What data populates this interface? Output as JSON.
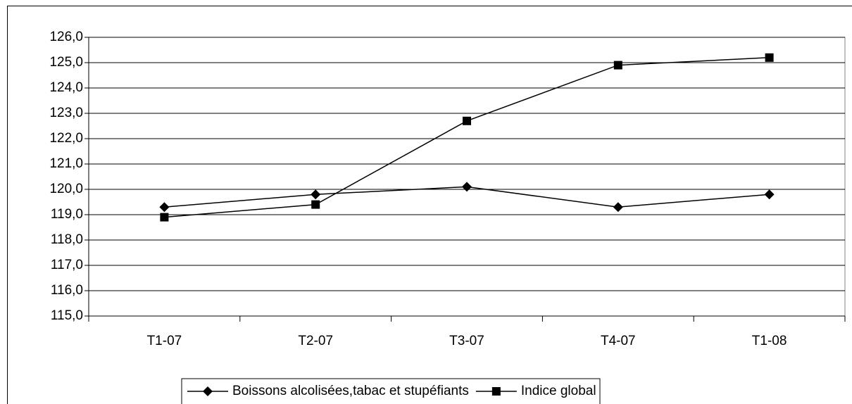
{
  "chart_data": {
    "type": "line",
    "categories": [
      "T1-07",
      "T2-07",
      "T3-07",
      "T4-07",
      "T1-08"
    ],
    "series": [
      {
        "name": "Boissons alcolisées,tabac et stupéfiants",
        "color": "#000000",
        "marker": "diamond",
        "values": [
          119.3,
          119.8,
          120.1,
          119.3,
          119.8
        ]
      },
      {
        "name": "Indice global",
        "color": "#000000",
        "marker": "square",
        "values": [
          118.9,
          119.4,
          122.7,
          124.9,
          125.2
        ]
      }
    ],
    "ylim": [
      115,
      126
    ],
    "yticks": [
      {
        "value": 115,
        "label": "115,0"
      },
      {
        "value": 116,
        "label": "116,0"
      },
      {
        "value": 117,
        "label": "117,0"
      },
      {
        "value": 118,
        "label": "118,0"
      },
      {
        "value": 119,
        "label": "119,0"
      },
      {
        "value": 120,
        "label": "120,0"
      },
      {
        "value": 121,
        "label": "121,0"
      },
      {
        "value": 122,
        "label": "122,0"
      },
      {
        "value": 123,
        "label": "123,0"
      },
      {
        "value": 124,
        "label": "124,0"
      },
      {
        "value": 125,
        "label": "125,0"
      },
      {
        "value": 126,
        "label": "126,0"
      }
    ],
    "grid": true,
    "legend": "bottom"
  }
}
